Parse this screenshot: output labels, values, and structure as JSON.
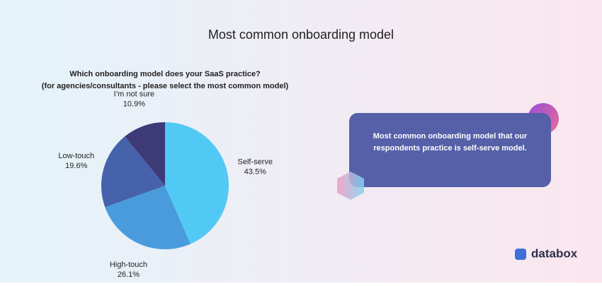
{
  "chart_data": {
    "type": "pie",
    "title": "Most common onboarding model",
    "subtitle": [
      "Which onboarding model does your SaaS practice?",
      "(for agencies/consultants - please select the most common model)"
    ],
    "categories": [
      "Self-serve",
      "High-touch",
      "Low-touch",
      "I’m not sure"
    ],
    "values": [
      43.5,
      26.1,
      19.6,
      10.9
    ],
    "value_labels": [
      "43.5%",
      "26.1%",
      "19.6%",
      "10.9%"
    ],
    "colors": [
      "#52c9f5",
      "#4a9bdb",
      "#4562ab",
      "#3e3a78"
    ],
    "annotation": "Most common onboarding model that our respondents practice is self-serve model."
  },
  "brand": "databox"
}
